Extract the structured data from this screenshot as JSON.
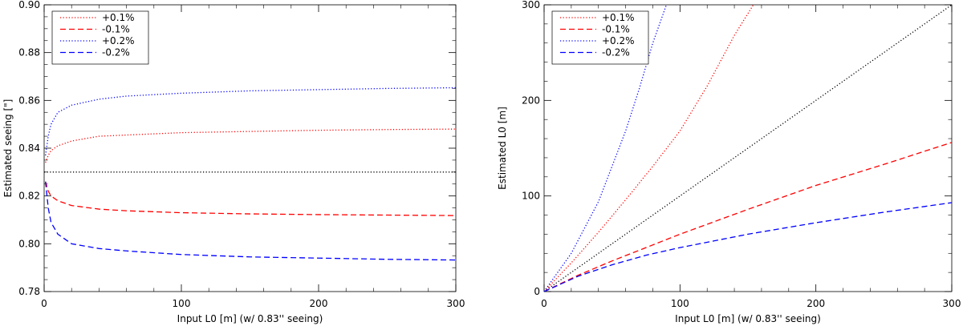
{
  "chart_data": [
    {
      "type": "line",
      "id": "left",
      "xlabel": "Input L0 [m] (w/ 0.83'' seeing)",
      "ylabel": "Estimated seeing [\"]",
      "xlim": [
        0,
        300
      ],
      "ylim": [
        0.78,
        0.9
      ],
      "xticks": [
        0,
        100,
        200,
        300
      ],
      "xtick_labels": [
        "0",
        "100",
        "200",
        "300"
      ],
      "yticks": [
        0.78,
        0.8,
        0.82,
        0.84,
        0.86,
        0.88,
        0.9
      ],
      "ytick_labels": [
        "0.78",
        "0.80",
        "0.82",
        "0.84",
        "0.86",
        "0.88",
        "0.90"
      ],
      "legend_position": "top-left",
      "reference": {
        "name": "reference",
        "color": "#000000",
        "style": "dotted",
        "x": [
          0,
          300
        ],
        "values": [
          0.83,
          0.83
        ]
      },
      "series": [
        {
          "name": "+0.1%",
          "color": "#ff0000",
          "style": "dotted",
          "x": [
            1,
            3,
            5,
            10,
            20,
            40,
            60,
            100,
            150,
            200,
            250,
            300
          ],
          "values": [
            0.834,
            0.837,
            0.839,
            0.841,
            0.843,
            0.845,
            0.8455,
            0.8465,
            0.847,
            0.8475,
            0.8478,
            0.848
          ]
        },
        {
          "name": "-0.1%",
          "color": "#ff0000",
          "style": "dashed",
          "x": [
            1,
            3,
            5,
            10,
            20,
            40,
            60,
            100,
            150,
            200,
            250,
            300
          ],
          "values": [
            0.826,
            0.822,
            0.82,
            0.818,
            0.816,
            0.8145,
            0.8138,
            0.813,
            0.8125,
            0.8122,
            0.812,
            0.8118
          ]
        },
        {
          "name": "+0.2%",
          "color": "#0000ff",
          "style": "dotted",
          "x": [
            1,
            3,
            5,
            10,
            20,
            40,
            60,
            100,
            150,
            200,
            250,
            300
          ],
          "values": [
            0.837,
            0.845,
            0.85,
            0.855,
            0.858,
            0.8605,
            0.8618,
            0.863,
            0.864,
            0.8645,
            0.865,
            0.8653
          ]
        },
        {
          "name": "-0.2%",
          "color": "#0000ff",
          "style": "dashed",
          "x": [
            1,
            3,
            5,
            10,
            20,
            40,
            60,
            100,
            150,
            200,
            250,
            300
          ],
          "values": [
            0.826,
            0.815,
            0.809,
            0.804,
            0.8,
            0.798,
            0.797,
            0.7955,
            0.7945,
            0.794,
            0.7935,
            0.7932
          ]
        }
      ]
    },
    {
      "type": "line",
      "id": "right",
      "xlabel": "Input L0 [m] (w/ 0.83'' seeing)",
      "ylabel": "Estimated L0 [m]",
      "xlim": [
        0,
        300
      ],
      "ylim": [
        0,
        300
      ],
      "xticks": [
        0,
        100,
        200,
        300
      ],
      "xtick_labels": [
        "0",
        "100",
        "200",
        "300"
      ],
      "yticks": [
        0,
        100,
        200,
        300
      ],
      "ytick_labels": [
        "0",
        "100",
        "200",
        "300"
      ],
      "legend_position": "top-left",
      "reference": {
        "name": "reference",
        "color": "#000000",
        "style": "dotted",
        "x": [
          0,
          300
        ],
        "values": [
          0,
          300
        ]
      },
      "series": [
        {
          "name": "+0.1%",
          "color": "#ff0000",
          "style": "dotted",
          "x": [
            0,
            20,
            40,
            60,
            80,
            100,
            120,
            140,
            154
          ],
          "values": [
            0,
            30,
            62,
            96,
            131,
            168,
            215,
            268,
            300
          ]
        },
        {
          "name": "-0.1%",
          "color": "#ff0000",
          "style": "dashed",
          "x": [
            0,
            25,
            50,
            75,
            100,
            150,
            200,
            250,
            300
          ],
          "values": [
            0,
            17,
            32,
            46,
            60,
            86,
            111,
            133,
            156
          ]
        },
        {
          "name": "+0.2%",
          "color": "#0000ff",
          "style": "dotted",
          "x": [
            0,
            20,
            40,
            60,
            70,
            80,
            90
          ],
          "values": [
            0,
            40,
            94,
            168,
            212,
            260,
            300
          ]
        },
        {
          "name": "-0.2%",
          "color": "#0000ff",
          "style": "dashed",
          "x": [
            0,
            25,
            50,
            75,
            100,
            150,
            200,
            250,
            300
          ],
          "values": [
            0,
            16,
            28,
            38,
            46,
            60,
            72,
            83,
            93
          ]
        }
      ]
    }
  ]
}
